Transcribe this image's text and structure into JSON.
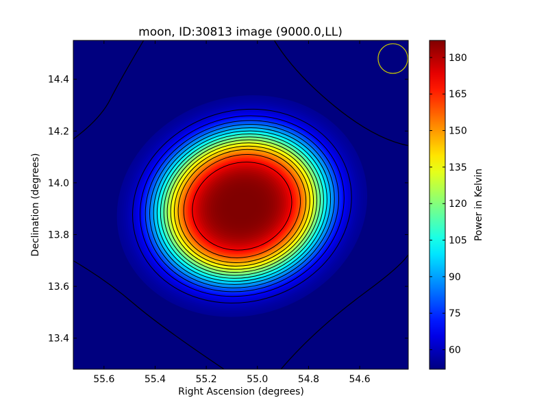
{
  "chart_data": {
    "type": "heatmap",
    "title": "moon, ID:30813 image (9000.0,LL)",
    "xlabel": "Right Ascension (degrees)",
    "ylabel": "Declination (degrees)",
    "colorbar_label": "Power in Kelvin",
    "colormap": "jet",
    "xlim": [
      55.72,
      54.41
    ],
    "ylim": [
      13.28,
      14.55
    ],
    "x_ticks": [
      55.6,
      55.4,
      55.2,
      55.0,
      54.8,
      54.6
    ],
    "x_tick_labels": [
      "55.6",
      "55.4",
      "55.2",
      "55.0",
      "54.8",
      "54.6"
    ],
    "y_ticks": [
      13.4,
      13.6,
      13.8,
      14.0,
      14.2,
      14.4
    ],
    "y_tick_labels": [
      "13.4",
      "13.6",
      "13.8",
      "14.0",
      "14.2",
      "14.4"
    ],
    "color_range": [
      52,
      187
    ],
    "colorbar_ticks": [
      60,
      75,
      90,
      105,
      120,
      135,
      150,
      165,
      180
    ],
    "colorbar_tick_labels": [
      "60",
      "75",
      "90",
      "105",
      "120",
      "135",
      "150",
      "165",
      "180"
    ],
    "source": {
      "center_ra": 55.06,
      "center_dec": 13.91,
      "peak_value": 187,
      "background_value": 54
    },
    "contour_levels": [
      62,
      70,
      78,
      86,
      94,
      102,
      110,
      118,
      126,
      134,
      142,
      150,
      160,
      172
    ],
    "beam_marker": {
      "ra": 54.47,
      "dec": 14.48,
      "color": "#cccc00",
      "shape": "circle"
    }
  }
}
